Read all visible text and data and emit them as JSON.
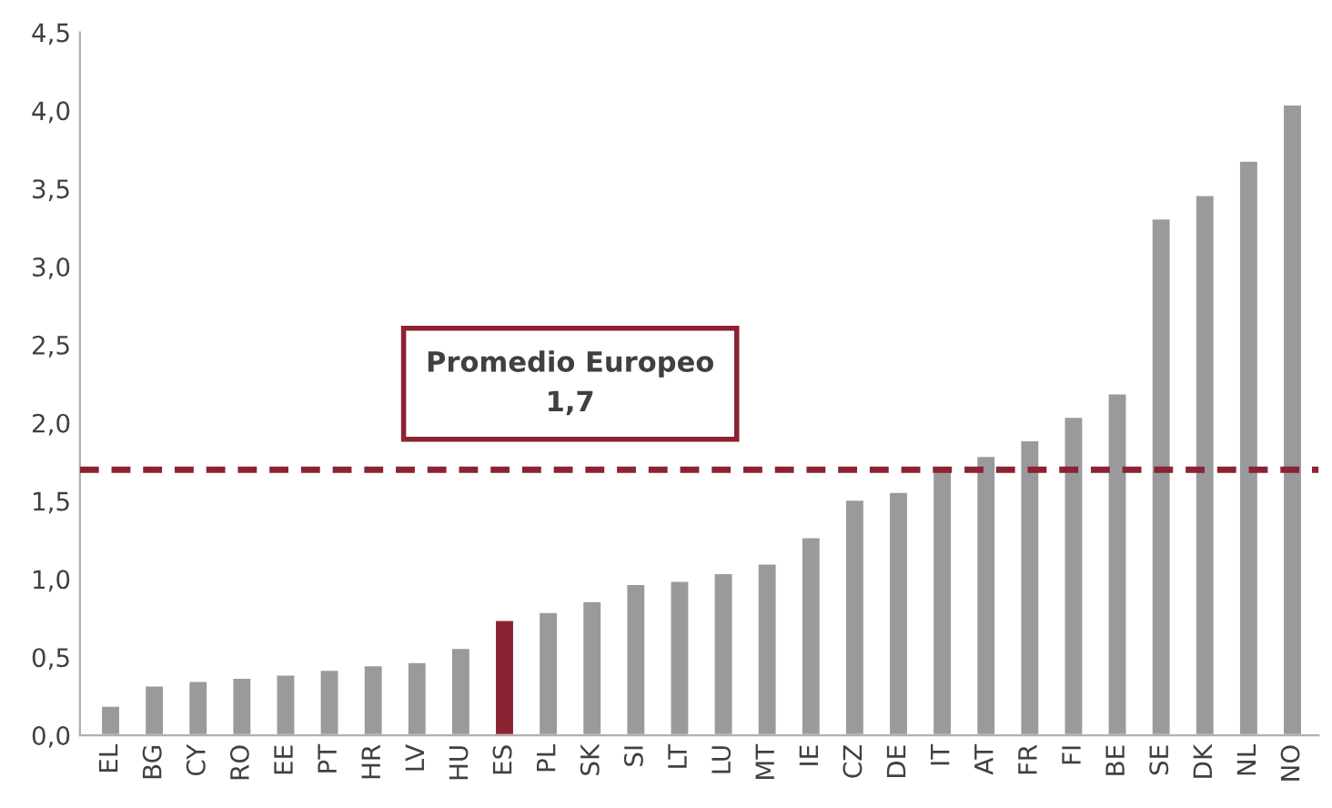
{
  "chart_data": {
    "type": "bar",
    "categories": [
      "EL",
      "BG",
      "CY",
      "RO",
      "EE",
      "PT",
      "HR",
      "LV",
      "HU",
      "ES",
      "PL",
      "SK",
      "SI",
      "LT",
      "LU",
      "MT",
      "IE",
      "CZ",
      "DE",
      "IT",
      "AT",
      "FR",
      "FI",
      "BE",
      "SE",
      "DK",
      "NL",
      "NO"
    ],
    "values": [
      0.19,
      0.32,
      0.35,
      0.37,
      0.39,
      0.42,
      0.45,
      0.47,
      0.56,
      0.74,
      0.79,
      0.86,
      0.97,
      0.99,
      1.04,
      1.1,
      1.27,
      1.51,
      1.56,
      1.7,
      1.79,
      1.89,
      2.04,
      2.19,
      3.31,
      3.46,
      3.68,
      4.04
    ],
    "colors": [
      "#9a9a9c",
      "#9a9a9c",
      "#9a9a9c",
      "#9a9a9c",
      "#9a9a9c",
      "#9a9a9c",
      "#9a9a9c",
      "#9a9a9c",
      "#9a9a9c",
      "#8b2332",
      "#9a9a9c",
      "#9a9a9c",
      "#9a9a9c",
      "#9a9a9c",
      "#9a9a9c",
      "#9a9a9c",
      "#9a9a9c",
      "#9a9a9c",
      "#9a9a9c",
      "#9a9a9c",
      "#9a9a9c",
      "#9a9a9c",
      "#9a9a9c",
      "#9a9a9c",
      "#9a9a9c",
      "#9a9a9c",
      "#9a9a9c",
      "#9a9a9c"
    ],
    "ylim": [
      0,
      4.5
    ],
    "yticks": [
      {
        "value": 0,
        "label": "0,0"
      },
      {
        "value": 0.5,
        "label": "0,5"
      },
      {
        "value": 1,
        "label": "1,0"
      },
      {
        "value": 1.5,
        "label": "1,5"
      },
      {
        "value": 2,
        "label": "2,0"
      },
      {
        "value": 2.5,
        "label": "2,5"
      },
      {
        "value": 3,
        "label": "3,0"
      },
      {
        "value": 3.5,
        "label": "3,5"
      },
      {
        "value": 4,
        "label": "4,0"
      },
      {
        "value": 4.5,
        "label": "4,5"
      }
    ],
    "ref_lines": [
      {
        "axis": "y",
        "value": 1.7,
        "label": "Promedio Europeo\n1,7",
        "color": "#8b2332",
        "line_style": "dashed"
      }
    ],
    "grid": false,
    "legend": false
  }
}
